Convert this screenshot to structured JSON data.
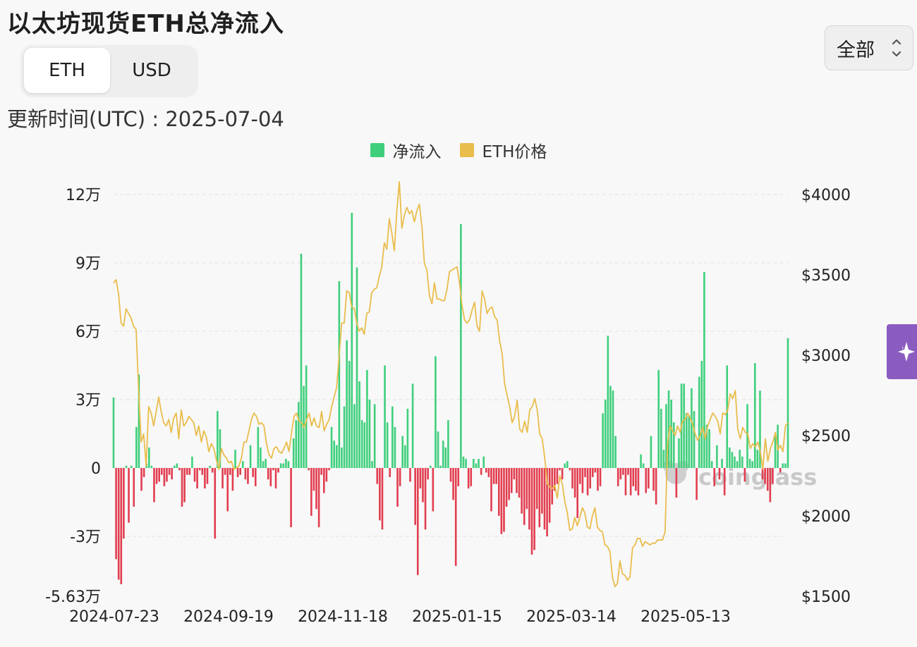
{
  "header": {
    "title": "以太坊现货ETH总净流入",
    "unit_tabs": [
      "ETH",
      "USD"
    ],
    "active_tab": "ETH",
    "updated": "更新时间(UTC) : 2025-07-04",
    "range_select": "全部"
  },
  "watermark": "coinglass",
  "colors": {
    "inflow": "#3fcf7c",
    "outflow": "#e23d4f",
    "price": "#e9bd4c",
    "accent_tab": "#8a5cc0"
  },
  "icons": {
    "select_arrow": "chevron-up-down-icon",
    "side_tab": "sparkle-icon",
    "watermark_logo": "coinglass-logo-icon"
  },
  "chart_data": {
    "type": "bar",
    "title": "",
    "legend": [
      "净流入",
      "ETH价格"
    ],
    "legend_position": "top-center",
    "grid": true,
    "x_ticks": [
      "2024-07-23",
      "2024-09-19",
      "2024-11-18",
      "2025-01-15",
      "2025-03-14",
      "2025-05-13"
    ],
    "y_left": {
      "ticks": [
        "12万",
        "9万",
        "6万",
        "3万",
        "0",
        "-3万",
        "-5.63万"
      ],
      "ylim": [
        -56300,
        120000
      ]
    },
    "y_right": {
      "ticks": [
        "$4000",
        "$3500",
        "$3000",
        "$2500",
        "$2000",
        "$1500"
      ],
      "ylim": [
        1500,
        4000
      ]
    },
    "series": [
      {
        "name": "净流入",
        "type": "bar",
        "axis": "left",
        "values": [
          31000,
          -40000,
          -49000,
          -51000,
          -31000,
          1000,
          -24000,
          1000,
          -17000,
          18000,
          41000,
          -10000,
          -4000,
          2000,
          9000,
          1000,
          -15000,
          -7000,
          -6000,
          -3000,
          -8000,
          -6000,
          -3000,
          -5000,
          1000,
          2000,
          -1000,
          -17000,
          -15000,
          -3000,
          -3000,
          5000,
          -6000,
          -9000,
          -1000,
          -3000,
          -9000,
          -7000,
          1000,
          -2000,
          -31000,
          25000,
          17000,
          -9000,
          -3000,
          -19000,
          -3000,
          -10000,
          8000,
          -4000,
          -3000,
          3000,
          -5000,
          -7000,
          10000,
          -4000,
          -8000,
          18000,
          9000,
          3000,
          4000,
          -5000,
          -8000,
          -1000,
          -9000,
          -2000,
          2000,
          2000,
          4000,
          3000,
          -26000,
          13000,
          21000,
          29000,
          94000,
          36000,
          45000,
          -1000,
          -21000,
          -10000,
          -18000,
          -26000,
          -3000,
          -11000,
          -6000,
          -1000,
          18000,
          12000,
          10000,
          82000,
          9000,
          27000,
          56000,
          47000,
          112000,
          28000,
          88000,
          38000,
          21000,
          20000,
          43000,
          30000,
          3000,
          28000,
          -7000,
          -23000,
          -27000,
          45000,
          20000,
          -4000,
          27000,
          18000,
          -17000,
          -8000,
          14000,
          10000,
          26000,
          -6000,
          37000,
          -25000,
          -47000,
          -9000,
          -15000,
          -27000,
          -5000,
          1000,
          -19000,
          49000,
          16000,
          1000,
          12000,
          9000,
          21000,
          -6000,
          -14000,
          -43000,
          -8000,
          107000,
          5000,
          4000,
          -9000,
          -8000,
          4000,
          2000,
          4000,
          -3000,
          5000,
          -2000,
          -4000,
          -19000,
          -7000,
          -7000,
          -21000,
          -29000,
          -28000,
          -17000,
          -14000,
          -11000,
          -5000,
          -11000,
          -13000,
          -20000,
          -25000,
          -18000,
          -27000,
          -38000,
          -36000,
          -18000,
          -26000,
          -20000,
          -27000,
          -30000,
          -24000,
          -16000,
          -10000,
          -7000,
          -1000,
          -5000,
          2000,
          3000,
          -1000,
          -9000,
          -13000,
          -22000,
          -7000,
          -11000,
          -4000,
          -12000,
          -9000,
          -4000,
          -2000,
          -10000,
          -8000,
          24000,
          30000,
          58000,
          36000,
          34000,
          14000,
          -8000,
          -5000,
          -3000,
          -12000,
          -3000,
          -12000,
          -8000,
          -10000,
          -12000,
          6000,
          2000,
          -11000,
          -9000,
          14000,
          -10000,
          -16000,
          43000,
          26000,
          8000,
          28000,
          34000,
          30000,
          20000,
          -13000,
          13000,
          37000,
          37000,
          24000,
          23000,
          35000,
          25000,
          -14000,
          40000,
          47000,
          86000,
          19000,
          17000,
          3000,
          -8000,
          10000,
          -5000,
          4000,
          -12000,
          45000,
          9000,
          7000,
          5000,
          3000,
          8000,
          5000,
          -6000,
          28000,
          4000,
          3000,
          46000,
          8000,
          34000,
          -5000,
          -7000,
          -10000,
          -15000,
          -7000,
          14000,
          19000,
          -2000,
          2000,
          2000,
          57000
        ],
        "note": "bar heights estimated from image"
      },
      {
        "name": "ETH价格",
        "type": "line",
        "axis": "right",
        "values": [
          3450,
          3470,
          3380,
          3200,
          3180,
          3290,
          3260,
          3230,
          3180,
          3160,
          2780,
          2460,
          2510,
          2310,
          2680,
          2640,
          2560,
          2650,
          2740,
          2650,
          2580,
          2560,
          2600,
          2520,
          2610,
          2640,
          2480,
          2660,
          2560,
          2580,
          2620,
          2600,
          2580,
          2500,
          2560,
          2460,
          2530,
          2490,
          2400,
          2450,
          2420,
          2350,
          2290,
          2420,
          2380,
          2360,
          2330,
          2340,
          2290,
          2300,
          2310,
          2360,
          2460,
          2460,
          2530,
          2600,
          2640,
          2620,
          2570,
          2580,
          2560,
          2450,
          2380,
          2360,
          2420,
          2430,
          2400,
          2390,
          2420,
          2460,
          2400,
          2520,
          2620,
          2640,
          2590,
          2580,
          2550,
          2600,
          2640,
          2560,
          2610,
          2560,
          2550,
          2650,
          2530,
          2570,
          2600,
          2680,
          2740,
          2800,
          3000,
          3200,
          3200,
          3400,
          3390,
          3300,
          3290,
          3200,
          3150,
          3170,
          3130,
          3260,
          3270,
          3390,
          3410,
          3420,
          3490,
          3550,
          3700,
          3660,
          3850,
          3760,
          3650,
          3900,
          4080,
          3790,
          3870,
          3920,
          3880,
          3900,
          3830,
          3900,
          3940,
          3800,
          3570,
          3530,
          3370,
          3320,
          3450,
          3350,
          3350,
          3340,
          3340,
          3410,
          3520,
          3530,
          3540,
          3550,
          3450,
          3310,
          3220,
          3200,
          3220,
          3280,
          3330,
          3180,
          3150,
          3400,
          3350,
          3260,
          3290,
          3300,
          3240,
          3220,
          3090,
          3010,
          2820,
          2750,
          2680,
          2580,
          2620,
          2720,
          2540,
          2520,
          2590,
          2520,
          2660,
          2680,
          2730,
          2660,
          2510,
          2480,
          2360,
          2200,
          2180,
          2170,
          2190,
          2110,
          2250,
          2200,
          2090,
          2020,
          1910,
          1920,
          1990,
          1940,
          1990,
          2050,
          2020,
          1930,
          1920,
          2000,
          2050,
          1930,
          1910,
          1900,
          1820,
          1810,
          1780,
          1620,
          1560,
          1580,
          1720,
          1640,
          1630,
          1600,
          1620,
          1800,
          1820,
          1860,
          1860,
          1810,
          1840,
          1830,
          1820,
          1830,
          1830,
          1850,
          1850,
          1850,
          1900,
          2450,
          2560,
          2530,
          2500,
          2560,
          2520,
          2590,
          2600,
          2640,
          2610,
          2570,
          2510,
          2470,
          2500,
          2550,
          2480,
          2560,
          2600,
          2640,
          2620,
          2590,
          2510,
          2640,
          2630,
          2660,
          2760,
          2730,
          2780,
          2540,
          2480,
          2550,
          2520,
          2510,
          2420,
          2450,
          2430,
          2460,
          2400,
          2290,
          2480,
          2340,
          2420,
          2460,
          2520,
          2410,
          2440,
          2400,
          2560,
          2580
        ]
      }
    ]
  }
}
